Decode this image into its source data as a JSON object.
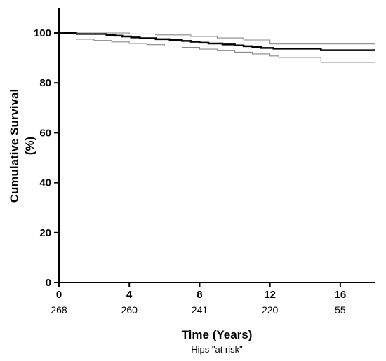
{
  "chart_data": {
    "type": "line",
    "xlabel": "Time (Years)",
    "ylabel_line1": "Cumulative Survival",
    "ylabel_line2": "(%)",
    "xlim": [
      0,
      18
    ],
    "ylim": [
      0,
      100
    ],
    "x_ticks": [
      0,
      4,
      8,
      12,
      16
    ],
    "y_ticks": [
      0,
      20,
      40,
      60,
      80,
      100
    ],
    "grid": false,
    "at_risk_label": "Hips \"at risk\"",
    "at_risk": [
      {
        "time": 0,
        "count": "268"
      },
      {
        "time": 4,
        "count": "260"
      },
      {
        "time": 8,
        "count": "241"
      },
      {
        "time": 12,
        "count": "220"
      },
      {
        "time": 16,
        "count": "55"
      }
    ],
    "series": [
      {
        "role": "estimate",
        "color": "#000000",
        "step": true,
        "x": [
          0,
          1.0,
          2.7,
          3.2,
          3.6,
          4.1,
          4.6,
          5.5,
          6.3,
          7.0,
          7.5,
          8.0,
          8.5,
          9.3,
          10.0,
          10.5,
          11.0,
          11.5,
          12.2,
          12.6,
          13.1,
          14.9,
          18.0
        ],
        "y": [
          100,
          99.6,
          99.2,
          98.9,
          98.6,
          98.2,
          97.9,
          97.5,
          97.2,
          96.8,
          96.5,
          96.1,
          95.8,
          95.4,
          95.0,
          94.7,
          94.3,
          94.0,
          93.7,
          93.7,
          93.7,
          93.1,
          93.1
        ]
      },
      {
        "role": "upper-ci",
        "color": "#888888",
        "step": true,
        "x": [
          1.0,
          4.0,
          5.5,
          7.5,
          9.0,
          10.5,
          12.0,
          18.0
        ],
        "y": [
          100,
          99.6,
          99.2,
          98.6,
          98.0,
          97.2,
          95.6,
          95.6
        ]
      },
      {
        "role": "lower-ci",
        "color": "#888888",
        "step": true,
        "x": [
          1.0,
          2.0,
          3.0,
          4.0,
          5.0,
          6.0,
          7.0,
          8.0,
          9.0,
          10.0,
          11.0,
          12.0,
          12.5,
          14.9,
          18.0
        ],
        "y": [
          97.5,
          97.0,
          96.4,
          95.8,
          95.3,
          94.8,
          94.2,
          93.5,
          92.9,
          92.3,
          91.6,
          90.8,
          90.2,
          88.2,
          88.2
        ]
      }
    ]
  }
}
